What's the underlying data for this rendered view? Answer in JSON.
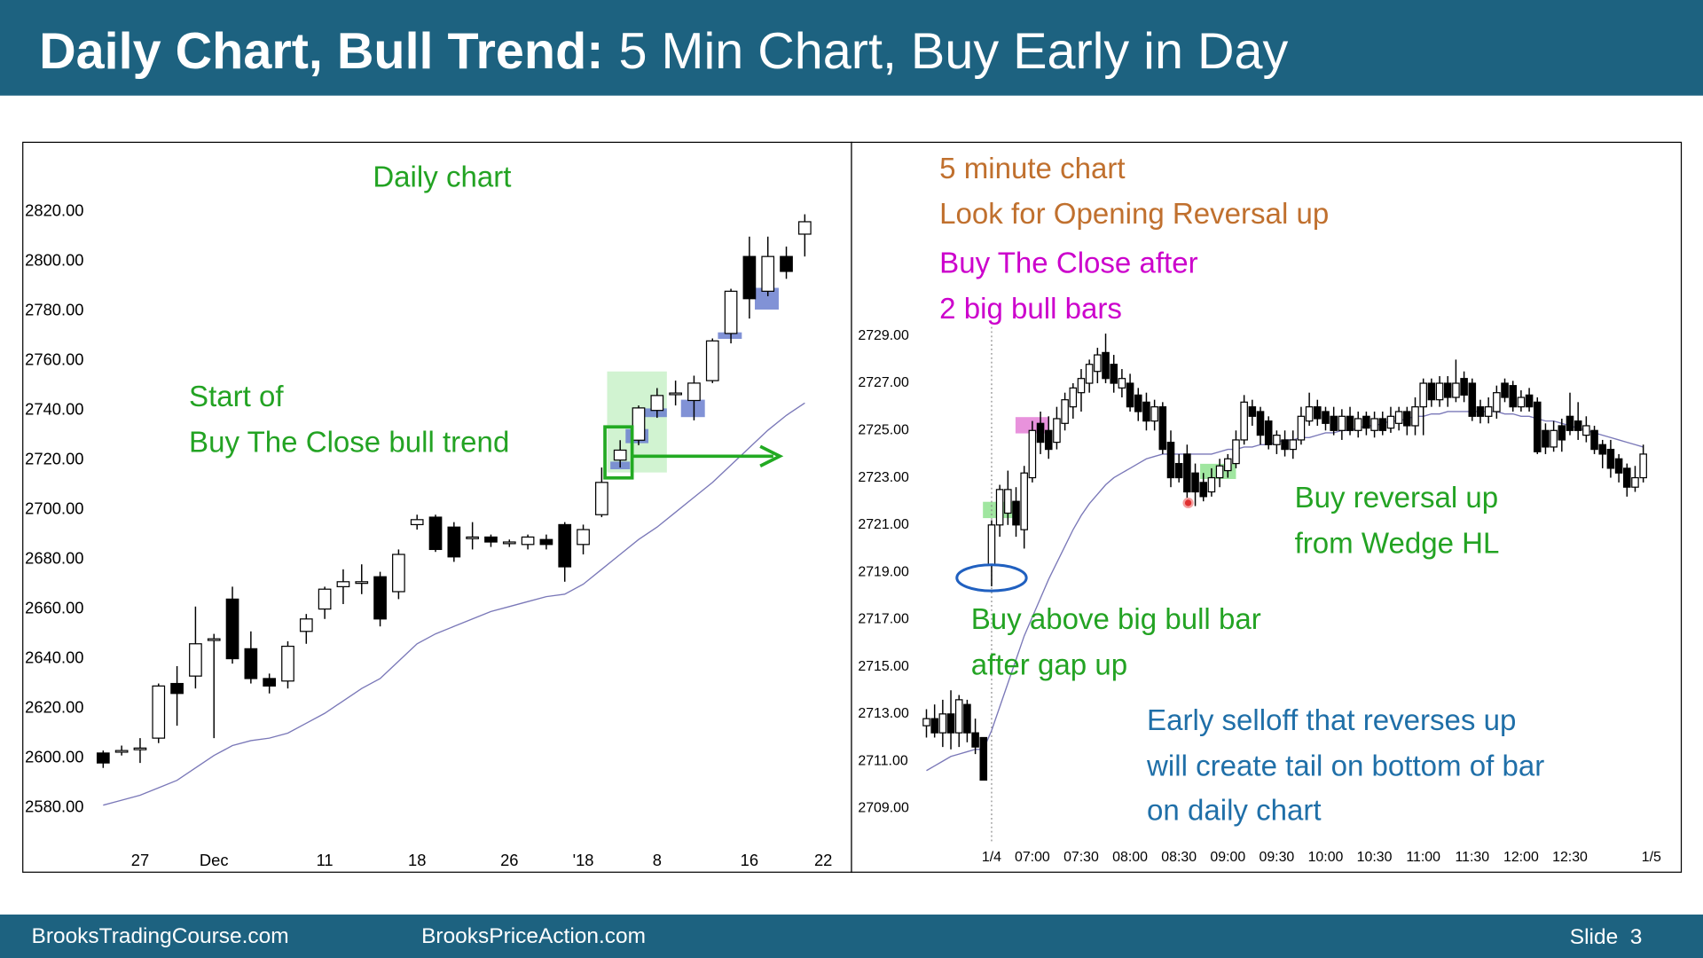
{
  "header": {
    "title_bold": "Daily Chart, Bull Trend:",
    "title_rest": "5 Min Chart, Buy Early in Day"
  },
  "footer": {
    "left": "BrooksTradingCourse.com",
    "center": "BrooksPriceAction.com",
    "slide": "Slide  3"
  },
  "chart_data": [
    {
      "type": "candlestick",
      "up_color": "#ffffff",
      "down_color": "#000000",
      "categories": [
        null,
        null,
        "27",
        null,
        null,
        null,
        "Dec",
        null,
        null,
        null,
        null,
        null,
        "11",
        null,
        null,
        null,
        null,
        "18",
        null,
        null,
        null,
        null,
        "26",
        null,
        null,
        null,
        "'18",
        null,
        null,
        null,
        "8",
        null,
        null,
        null,
        null,
        "16",
        null,
        null,
        null,
        "22"
      ],
      "open": [
        2602,
        2603,
        2604,
        2608,
        2630,
        2633,
        2648,
        2664,
        2644,
        2632,
        2631,
        2651,
        2660,
        2669,
        2671,
        2673,
        2667,
        2694,
        2697,
        2693,
        2689,
        2689,
        2687,
        2686,
        2688,
        2694,
        2686,
        2698,
        2720,
        2728,
        2740,
        2747,
        2744,
        2752,
        2771,
        2802,
        2788,
        2802,
        2811,
        null
      ],
      "high": [
        2603,
        2605,
        2608,
        2630,
        2637,
        2661,
        2650,
        2669,
        2651,
        2634,
        2647,
        2658,
        2669,
        2676,
        2678,
        2675,
        2684,
        2698,
        2698,
        2695,
        2695,
        2690,
        2688,
        2690,
        2690,
        2695,
        2694,
        2717,
        2728,
        2742,
        2749,
        2752,
        2754,
        2769,
        2789,
        2810,
        2810,
        2806,
        2819,
        null
      ],
      "low": [
        2596,
        2601,
        2598,
        2606,
        2613,
        2628,
        2608,
        2638,
        2630,
        2626,
        2628,
        2646,
        2656,
        2662,
        2666,
        2653,
        2664,
        2692,
        2683,
        2679,
        2684,
        2685,
        2685,
        2684,
        2684,
        2671,
        2682,
        2697,
        2717,
        2726,
        2737,
        2742,
        2736,
        2751,
        2767,
        2777,
        2786,
        2793,
        2802,
        null
      ],
      "close": [
        2598,
        2603,
        2604,
        2629,
        2626,
        2646,
        2648,
        2640,
        2632,
        2629,
        2645,
        2656,
        2668,
        2671,
        2671,
        2656,
        2682,
        2696,
        2684,
        2681,
        2689,
        2687,
        2687,
        2689,
        2686,
        2677,
        2692,
        2711,
        2724,
        2741,
        2746,
        2747,
        2751,
        2768,
        2788,
        2785,
        2802,
        2796,
        2816,
        null
      ],
      "moving_average": {
        "color": "#7a78b8",
        "values": [
          2581,
          2583,
          2585,
          2588,
          2591,
          2596,
          2601,
          2605,
          2607,
          2608,
          2610,
          2614,
          2618,
          2623,
          2628,
          2632,
          2639,
          2646,
          2650,
          2653,
          2656,
          2659,
          2661,
          2663,
          2665,
          2666,
          2670,
          2676,
          2682,
          2688,
          2693,
          2699,
          2705,
          2711,
          2718,
          2725,
          2732,
          2738,
          2743,
          null
        ]
      },
      "ylim": [
        2554,
        2848
      ],
      "yticks": [
        {
          "value": 2580,
          "label": "2580.00"
        },
        {
          "value": 2600,
          "label": "2600.00"
        },
        {
          "value": 2620,
          "label": "2620.00"
        },
        {
          "value": 2640,
          "label": "2640.00"
        },
        {
          "value": 2660,
          "label": "2660.00"
        },
        {
          "value": 2680,
          "label": "2680.00"
        },
        {
          "value": 2700,
          "label": "2700.00"
        },
        {
          "value": 2720,
          "label": "2720.00"
        },
        {
          "value": 2740,
          "label": "2740.00"
        },
        {
          "value": 2760,
          "label": "2760.00"
        },
        {
          "value": 2780,
          "label": "2780.00"
        },
        {
          "value": 2800,
          "label": "2800.00"
        },
        {
          "value": 2820,
          "label": "2820.00"
        }
      ],
      "grid": false,
      "annotations": [
        {
          "text": "Daily chart",
          "color": "#23a323"
        },
        {
          "text": "Start of",
          "color": "#23a323"
        },
        {
          "text": "Buy The Close bull trend",
          "color": "#23a323"
        }
      ]
    },
    {
      "type": "candlestick",
      "up_color": "#ffffff",
      "down_color": "#000000",
      "categories": [
        null,
        null,
        null,
        null,
        null,
        null,
        null,
        null,
        "1/4",
        null,
        null,
        null,
        null,
        "07:00",
        null,
        null,
        null,
        null,
        null,
        "07:30",
        null,
        null,
        null,
        null,
        null,
        "08:00",
        null,
        null,
        null,
        null,
        null,
        "08:30",
        null,
        null,
        null,
        null,
        null,
        "09:00",
        null,
        null,
        null,
        null,
        null,
        "09:30",
        null,
        null,
        null,
        null,
        null,
        "10:00",
        null,
        null,
        null,
        null,
        null,
        "10:30",
        null,
        null,
        null,
        null,
        null,
        "11:00",
        null,
        null,
        null,
        null,
        null,
        "11:30",
        null,
        null,
        null,
        null,
        null,
        "12:00",
        null,
        null,
        null,
        null,
        null,
        "12:30",
        null,
        null,
        null,
        null,
        null,
        null,
        null,
        null,
        null,
        "1/5"
      ],
      "open": [
        2712.5,
        2712.8,
        2712.2,
        2713,
        2712.2,
        2713.4,
        2712.2,
        2712,
        2719.3,
        2721,
        2721.5,
        2722,
        2720.8,
        2723,
        2725.3,
        2725,
        2724.5,
        2725.3,
        2726,
        2726.6,
        2727,
        2727.5,
        2728.3,
        2727.8,
        2726.8,
        2727,
        2726.5,
        2726.2,
        2725.4,
        2726,
        2724.5,
        2723.6,
        2724,
        2723.2,
        2722.8,
        2722.4,
        2723,
        2723.3,
        2723.6,
        2724.6,
        2726,
        2725.8,
        2725.4,
        2724.4,
        2724.6,
        2724.2,
        2724.6,
        2725.4,
        2726,
        2725.8,
        2725.6,
        2725,
        2725.6,
        2725,
        2725.6,
        2725,
        2725.5,
        2725.1,
        2725.3,
        2725.8,
        2725.2,
        2726,
        2727,
        2726.3,
        2727,
        2726.4,
        2727.2,
        2727,
        2726,
        2725.6,
        2725.8,
        2727,
        2726.9,
        2726,
        2726.5,
        2726.2,
        2725,
        2724.3,
        2725.2,
        2725.6,
        2725.4,
        2724.8,
        2725,
        2724.4,
        2724.2,
        2723.8,
        2723.4,
        2722.6,
        2723,
        null
      ],
      "high": [
        2713.2,
        2713.4,
        2713.6,
        2714,
        2713.8,
        2713.6,
        2712.8,
        2712,
        2721.2,
        2722.7,
        2723.3,
        2722.6,
        2723.5,
        2725.4,
        2725.8,
        2725.6,
        2726,
        2726.6,
        2727,
        2727.6,
        2728,
        2728.5,
        2729.1,
        2728.2,
        2727.6,
        2727.4,
        2726.8,
        2726.6,
        2726.3,
        2726.2,
        2725,
        2724,
        2724.4,
        2723.6,
        2723.2,
        2723.4,
        2723.8,
        2724,
        2725,
        2726.5,
        2726.3,
        2726,
        2725.6,
        2725,
        2725,
        2725,
        2726,
        2726.6,
        2726.3,
        2726,
        2726,
        2725.9,
        2726,
        2725.8,
        2725.8,
        2725.8,
        2725.8,
        2726,
        2726,
        2726,
        2726.4,
        2727.2,
        2727.2,
        2727.3,
        2727.3,
        2728,
        2727.5,
        2727.2,
        2726.3,
        2726.4,
        2726.9,
        2727.2,
        2727.1,
        2726.7,
        2726.8,
        2726.4,
        2725.3,
        2725.4,
        2725.5,
        2726.6,
        2726.2,
        2725.6,
        2725.2,
        2724.6,
        2724.6,
        2724,
        2723.6,
        2723.5,
        2724.4,
        null
      ],
      "low": [
        2712,
        2712,
        2711.6,
        2711.5,
        2711.6,
        2711.8,
        2711.3,
        2710.2,
        2718.4,
        2720.5,
        2721,
        2720.5,
        2720,
        2722.8,
        2724,
        2723.8,
        2724.2,
        2725,
        2725.5,
        2725.8,
        2726.6,
        2727,
        2727,
        2726.6,
        2726.4,
        2725.8,
        2725.4,
        2725,
        2725,
        2724,
        2722.6,
        2722.8,
        2721.8,
        2721.8,
        2722,
        2722.2,
        2722.6,
        2723,
        2723.4,
        2724.4,
        2725.2,
        2724.4,
        2724.2,
        2724,
        2723.9,
        2723.8,
        2724.4,
        2725.2,
        2725.2,
        2725,
        2724.8,
        2724.6,
        2724.8,
        2724.7,
        2724.8,
        2724.7,
        2724.8,
        2724.9,
        2725,
        2724.8,
        2724.8,
        2724.8,
        2726,
        2726,
        2726,
        2726.2,
        2726.2,
        2725.4,
        2725.3,
        2725.3,
        2725.5,
        2726.2,
        2725.8,
        2725.8,
        2725.8,
        2724,
        2724,
        2724.1,
        2724.1,
        2724.8,
        2724.6,
        2724.5,
        2724,
        2723.4,
        2723,
        2722.8,
        2722.2,
        2722.4,
        2722.8,
        null
      ],
      "close": [
        2712.8,
        2712.2,
        2713,
        2712.2,
        2713.6,
        2712.2,
        2711.6,
        2710.2,
        2721,
        2722.5,
        2722.5,
        2721,
        2723.2,
        2725,
        2724.5,
        2724.2,
        2725.5,
        2726.3,
        2726.8,
        2727.2,
        2727.8,
        2728.2,
        2727.2,
        2727,
        2727.2,
        2726,
        2725.8,
        2725.4,
        2726,
        2724.2,
        2723,
        2723,
        2722.4,
        2722.4,
        2722.2,
        2723,
        2723.5,
        2723.8,
        2724.6,
        2726.2,
        2725.6,
        2724.8,
        2724.4,
        2724.8,
        2724.2,
        2724.6,
        2725.6,
        2726,
        2725.5,
        2725.3,
        2725,
        2725.6,
        2725,
        2725.5,
        2725.1,
        2725.5,
        2725,
        2725.6,
        2725.8,
        2725.2,
        2726,
        2727,
        2726.3,
        2727,
        2726.4,
        2727,
        2726.5,
        2725.6,
        2725.6,
        2726,
        2726.6,
        2726.4,
        2726,
        2726.4,
        2726,
        2724.1,
        2724.3,
        2725,
        2724.6,
        2725,
        2725,
        2725.2,
        2724.2,
        2724,
        2723.4,
        2723.2,
        2722.6,
        2723,
        2724,
        null
      ],
      "moving_average": {
        "color": "#7a78b8",
        "values": [
          2710.6,
          2710.8,
          2711,
          2711.2,
          2711.3,
          2711.4,
          2711.5,
          2711.5,
          2712.3,
          2713.3,
          2714.3,
          2715.3,
          2716.3,
          2717.1,
          2717.9,
          2718.7,
          2719.4,
          2720.1,
          2720.8,
          2721.4,
          2721.9,
          2722.3,
          2722.7,
          2723,
          2723.2,
          2723.4,
          2723.6,
          2723.8,
          2723.9,
          2724,
          2724,
          2724,
          2724,
          2724,
          2724,
          2724,
          2724.1,
          2724.2,
          2724.2,
          2724.3,
          2724.3,
          2724.4,
          2724.4,
          2724.5,
          2724.6,
          2724.6,
          2724.7,
          2724.7,
          2724.8,
          2724.9,
          2724.9,
          2725,
          2725,
          2725.1,
          2725.2,
          2725.2,
          2725.3,
          2725.4,
          2725.4,
          2725.5,
          2725.6,
          2725.6,
          2725.7,
          2725.7,
          2725.8,
          2725.8,
          2725.8,
          2725.8,
          2725.8,
          2725.8,
          2725.8,
          2725.7,
          2725.7,
          2725.6,
          2725.6,
          2725.5,
          2725.4,
          2725.4,
          2725.3,
          2725.2,
          2725.1,
          2725,
          2724.9,
          2724.8,
          2724.7,
          2724.6,
          2724.5,
          2724.4,
          2724.3,
          null
        ]
      },
      "ylim": [
        2706.3,
        2737.2
      ],
      "yticks": [
        {
          "value": 2709,
          "label": "2709.00"
        },
        {
          "value": 2711,
          "label": "2711.00"
        },
        {
          "value": 2713,
          "label": "2713.00"
        },
        {
          "value": 2715,
          "label": "2715.00"
        },
        {
          "value": 2717,
          "label": "2717.00"
        },
        {
          "value": 2719,
          "label": "2719.00"
        },
        {
          "value": 2721,
          "label": "2721.00"
        },
        {
          "value": 2723,
          "label": "2723.00"
        },
        {
          "value": 2725,
          "label": "2725.00"
        },
        {
          "value": 2727,
          "label": "2727.00"
        },
        {
          "value": 2729,
          "label": "2729.00"
        }
      ],
      "grid": false,
      "annotations": [
        {
          "text": "5 minute chart",
          "color": "#c0702e"
        },
        {
          "text": "Look for Opening Reversal up",
          "color": "#c0702e"
        },
        {
          "text": "Buy The Close after",
          "color": "#cc00cc"
        },
        {
          "text": "2 big bull bars",
          "color": "#cc00cc"
        },
        {
          "text": "Buy reversal up",
          "color": "#23a323"
        },
        {
          "text": "from Wedge HL",
          "color": "#23a323"
        },
        {
          "text": "Buy above big bull bar",
          "color": "#23a323"
        },
        {
          "text": "after gap up",
          "color": "#23a323"
        },
        {
          "text": "Early selloff that reverses up",
          "color": "#1f6fa8"
        },
        {
          "text": "will create tail on bottom of bar",
          "color": "#1f6fa8"
        },
        {
          "text": "on daily chart",
          "color": "#1f6fa8"
        }
      ]
    }
  ]
}
